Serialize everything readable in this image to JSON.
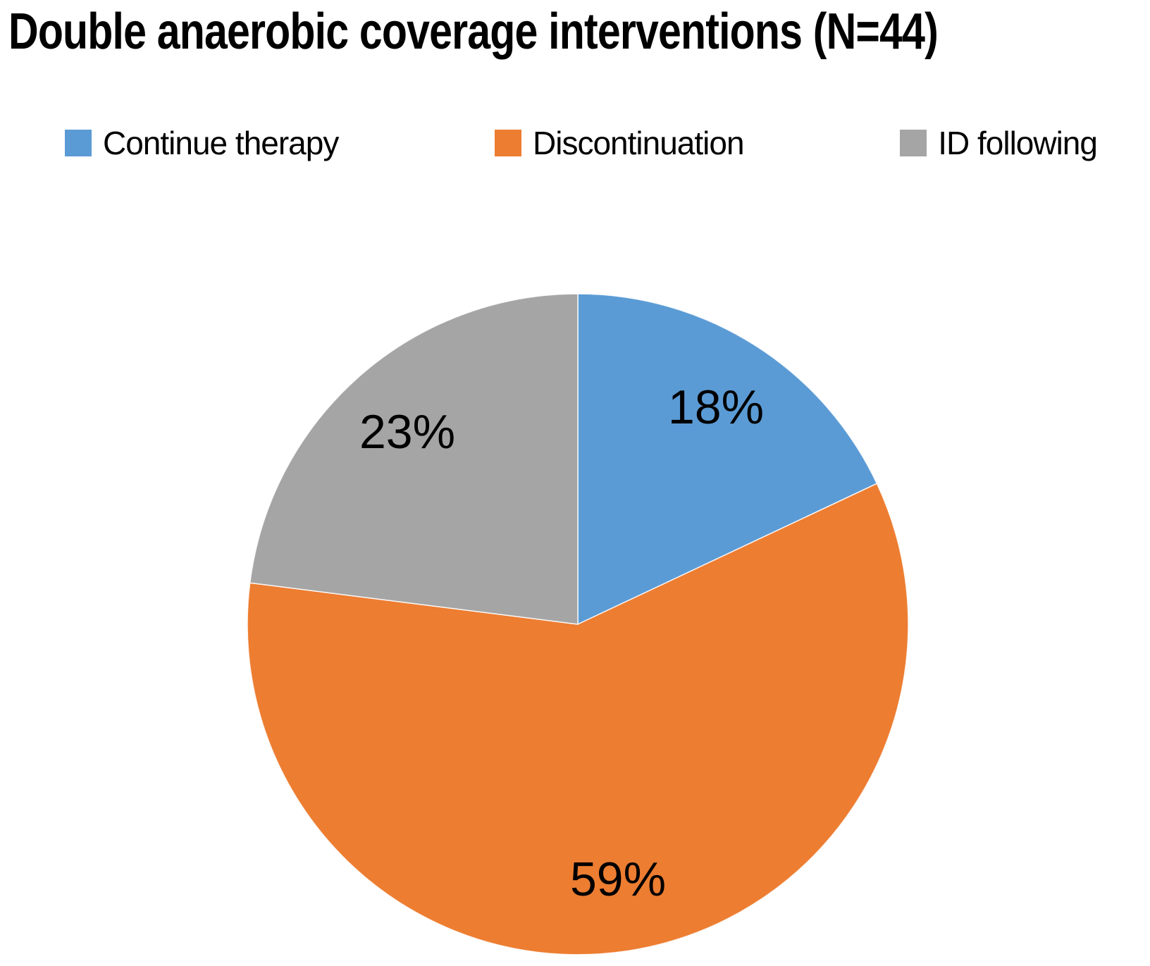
{
  "title": {
    "text": "Double anaerobic coverage interventions (N=44)"
  },
  "legend": {
    "position": "top",
    "items": [
      {
        "label": "Continue therapy",
        "color": "#5B9BD5"
      },
      {
        "label": "Discontinuation",
        "color": "#ED7D31"
      },
      {
        "label": "ID following",
        "color": "#A5A5A5"
      }
    ]
  },
  "chart_data": {
    "type": "pie",
    "title": "Double anaerobic coverage interventions (N=44)",
    "n_total": 44,
    "categories": [
      "Continue therapy",
      "Discontinuation",
      "ID following"
    ],
    "values_percent": [
      18,
      59,
      23
    ],
    "slices": [
      {
        "label": "Continue therapy",
        "percent": 18,
        "data_label": "18%",
        "color": "#5B9BD5"
      },
      {
        "label": "Discontinuation",
        "percent": 59,
        "data_label": "59%",
        "color": "#ED7D31"
      },
      {
        "label": "ID following",
        "percent": 23,
        "data_label": "23%",
        "color": "#A5A5A5"
      }
    ],
    "start_angle_deg": 0,
    "direction": "clockwise",
    "legend_position": "top",
    "data_labels_shown": true,
    "label_radius_frac": 0.78,
    "text_color": "#000000",
    "background_color": "#ffffff"
  }
}
